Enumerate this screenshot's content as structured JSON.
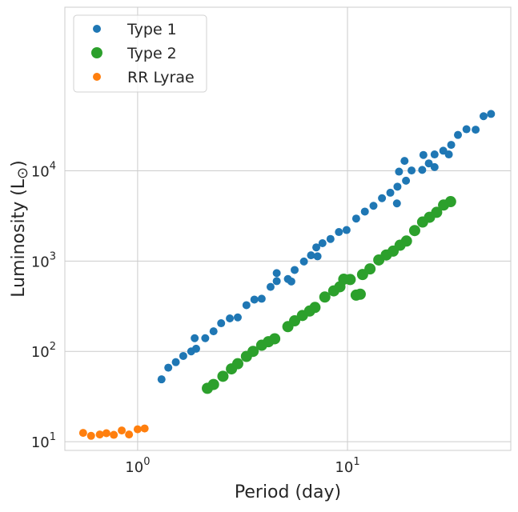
{
  "chart_data": {
    "type": "scatter",
    "xlabel": "Period (day)",
    "ylabel": "Luminosity (L",
    "ylabel_symbol": "⊙",
    "ylabel_close": ")",
    "xscale": "log",
    "yscale": "log",
    "xlim": [
      0.45,
      60
    ],
    "ylim": [
      8,
      650000
    ],
    "x_ticks": [
      {
        "value": 1,
        "base": "10",
        "exp": "0"
      },
      {
        "value": 10,
        "base": "10",
        "exp": "1"
      }
    ],
    "y_ticks": [
      {
        "value": 10,
        "base": "10",
        "exp": "1"
      },
      {
        "value": 100,
        "base": "10",
        "exp": "2"
      },
      {
        "value": 1000,
        "base": "10",
        "exp": "3"
      },
      {
        "value": 10000,
        "base": "10",
        "exp": "4"
      }
    ],
    "grid": true,
    "legend_position": "top-left",
    "series": [
      {
        "name": "Type 1",
        "color": "#1f77b4",
        "marker_radius": "small",
        "points": [
          [
            1.3,
            49
          ],
          [
            1.4,
            66
          ],
          [
            1.52,
            76
          ],
          [
            1.65,
            89
          ],
          [
            1.8,
            100
          ],
          [
            1.9,
            107
          ],
          [
            1.87,
            140
          ],
          [
            2.1,
            140
          ],
          [
            2.3,
            167
          ],
          [
            2.5,
            205
          ],
          [
            2.75,
            232
          ],
          [
            3.0,
            238
          ],
          [
            3.3,
            325
          ],
          [
            3.6,
            375
          ],
          [
            3.9,
            383
          ],
          [
            4.3,
            518
          ],
          [
            4.6,
            600
          ],
          [
            4.6,
            737
          ],
          [
            5.2,
            634
          ],
          [
            5.4,
            595
          ],
          [
            5.6,
            798
          ],
          [
            6.2,
            990
          ],
          [
            6.7,
            1160
          ],
          [
            7.1,
            1420
          ],
          [
            7.2,
            1130
          ],
          [
            7.6,
            1580
          ],
          [
            8.3,
            1760
          ],
          [
            9.1,
            2100
          ],
          [
            9.9,
            2210
          ],
          [
            11.0,
            2960
          ],
          [
            12.1,
            3540
          ],
          [
            13.3,
            4100
          ],
          [
            14.6,
            4980
          ],
          [
            16.0,
            5720
          ],
          [
            17.2,
            4360
          ],
          [
            17.3,
            6680
          ],
          [
            17.6,
            9800
          ],
          [
            18.7,
            12890
          ],
          [
            19.0,
            7780
          ],
          [
            20.2,
            10100
          ],
          [
            22.7,
            10250
          ],
          [
            23.0,
            15000
          ],
          [
            24.4,
            12100
          ],
          [
            26.0,
            11000
          ],
          [
            26.0,
            15200
          ],
          [
            28.6,
            16700
          ],
          [
            30.4,
            15200
          ],
          [
            31.2,
            19400
          ],
          [
            33.6,
            25000
          ],
          [
            36.9,
            28900
          ],
          [
            40.8,
            28600
          ],
          [
            44.5,
            40300
          ],
          [
            48.3,
            42700
          ]
        ]
      },
      {
        "name": "Type 2",
        "color": "#2ca02c",
        "marker_radius": "large",
        "points": [
          [
            2.15,
            39
          ],
          [
            2.3,
            43
          ],
          [
            2.55,
            53
          ],
          [
            2.8,
            64
          ],
          [
            3.0,
            73
          ],
          [
            3.3,
            88
          ],
          [
            3.55,
            100
          ],
          [
            3.9,
            117
          ],
          [
            4.2,
            128
          ],
          [
            4.5,
            138
          ],
          [
            5.2,
            188
          ],
          [
            5.6,
            218
          ],
          [
            6.1,
            250
          ],
          [
            6.6,
            280
          ],
          [
            7.0,
            307
          ],
          [
            7.8,
            400
          ],
          [
            8.6,
            468
          ],
          [
            9.2,
            520
          ],
          [
            9.6,
            630
          ],
          [
            10.3,
            625
          ],
          [
            11.0,
            420
          ],
          [
            11.5,
            430
          ],
          [
            11.8,
            710
          ],
          [
            12.8,
            820
          ],
          [
            14.1,
            1030
          ],
          [
            15.3,
            1170
          ],
          [
            16.5,
            1290
          ],
          [
            17.8,
            1500
          ],
          [
            19.1,
            1670
          ],
          [
            20.9,
            2180
          ],
          [
            22.8,
            2710
          ],
          [
            24.6,
            3060
          ],
          [
            26.6,
            3470
          ],
          [
            28.7,
            4180
          ],
          [
            31.0,
            4560
          ]
        ]
      },
      {
        "name": "RR Lyrae",
        "color": "#ff7f0e",
        "marker_radius": "small",
        "points": [
          [
            0.55,
            12.5
          ],
          [
            0.6,
            11.6
          ],
          [
            0.66,
            12.0
          ],
          [
            0.71,
            12.4
          ],
          [
            0.77,
            11.9
          ],
          [
            0.84,
            13.3
          ],
          [
            0.91,
            12.0
          ],
          [
            1.0,
            13.7
          ],
          [
            1.08,
            14.0
          ]
        ]
      }
    ]
  }
}
